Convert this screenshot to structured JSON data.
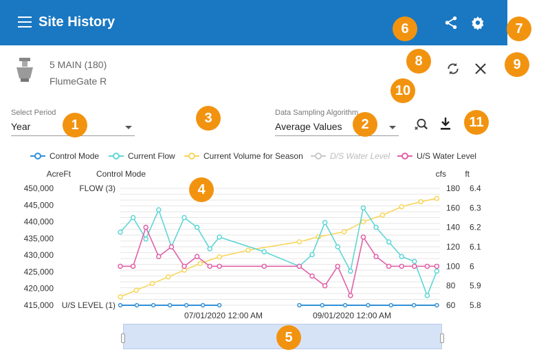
{
  "header": {
    "title": "Site History"
  },
  "asset": {
    "name": "5 MAIN (180)",
    "type": "FlumeGate R"
  },
  "period": {
    "label": "Select Period",
    "value": "Year"
  },
  "sampling": {
    "label": "Data Sampling Algorithm",
    "value": "Average Values"
  },
  "icons": [
    "menu-icon",
    "share-icon",
    "settings-icon",
    "refresh-icon",
    "close-icon",
    "zoom-reset-icon",
    "download-icon",
    "flumegate-icon"
  ],
  "colors": {
    "header_bg": "#1a78c2",
    "callout": "#f29310",
    "control_mode": "#2f8fd6",
    "current_flow": "#5fd5d5",
    "current_volume": "#f8d65a",
    "ds_water_level": "#c8c8c8",
    "us_water_level": "#e060a8"
  },
  "callouts": [
    "1",
    "2",
    "3",
    "4",
    "5",
    "6",
    "7",
    "8",
    "9",
    "10",
    "11"
  ],
  "legend": [
    {
      "label": "Control Mode"
    },
    {
      "label": "Current Flow"
    },
    {
      "label": "Current Volume for Season"
    },
    {
      "label": "D/S Water Level"
    },
    {
      "label": "U/S Water Level"
    }
  ],
  "chart_data": {
    "type": "line",
    "axes": {
      "acreft": {
        "label": "AcreFt",
        "ticks": [
          "450,000",
          "445,000",
          "440,000",
          "435,000",
          "430,000",
          "425,000",
          "420,000",
          "415,000"
        ],
        "range": [
          415000,
          450000
        ]
      },
      "control_mode": {
        "label": "Control Mode",
        "ticks": [
          "FLOW (3)",
          "U/S LEVEL (1)"
        ]
      },
      "cfs": {
        "label": "cfs",
        "ticks": [
          "180",
          "160",
          "140",
          "120",
          "100",
          "80",
          "60"
        ],
        "range": [
          60,
          180
        ]
      },
      "ft": {
        "label": "ft",
        "ticks": [
          "6.4",
          "6.3",
          "6.2",
          "6.1",
          "6",
          "5.9",
          "5.8"
        ],
        "range": [
          5.8,
          6.4
        ]
      },
      "x": {
        "ticks": [
          "07/01/2020 12:00 AM",
          "09/01/2020 12:00 AM"
        ]
      }
    },
    "series": [
      {
        "name": "Control Mode",
        "axis": "control_mode",
        "shape": "flat",
        "level": 60,
        "segments": [
          [
            0.0,
            0.31
          ],
          [
            0.56,
            0.99
          ]
        ]
      },
      {
        "name": "Current Flow",
        "axis": "cfs",
        "x": [
          0.0,
          0.04,
          0.08,
          0.12,
          0.16,
          0.2,
          0.24,
          0.28,
          0.31,
          0.45,
          0.56,
          0.6,
          0.64,
          0.68,
          0.72,
          0.76,
          0.8,
          0.84,
          0.88,
          0.92,
          0.96,
          0.99
        ],
        "y": [
          135,
          150,
          128,
          158,
          120,
          150,
          140,
          118,
          130,
          115,
          100,
          112,
          145,
          120,
          95,
          160,
          140,
          125,
          110,
          105,
          70,
          95
        ]
      },
      {
        "name": "Current Volume for Season",
        "axis": "acreft",
        "x": [
          0.0,
          0.05,
          0.1,
          0.15,
          0.2,
          0.25,
          0.31,
          0.4,
          0.56,
          0.62,
          0.7,
          0.76,
          0.82,
          0.88,
          0.94,
          0.99
        ],
        "y": [
          417500,
          419500,
          421500,
          423500,
          425500,
          427500,
          429500,
          431500,
          434000,
          435500,
          437000,
          440000,
          442000,
          444500,
          446000,
          447000
        ]
      },
      {
        "name": "U/S Water Level",
        "axis": "ft",
        "x": [
          0.0,
          0.04,
          0.08,
          0.12,
          0.16,
          0.2,
          0.24,
          0.28,
          0.31,
          0.45,
          0.56,
          0.6,
          0.64,
          0.68,
          0.72,
          0.76,
          0.8,
          0.84,
          0.88,
          0.92,
          0.96,
          0.99
        ],
        "y": [
          6.0,
          6.0,
          6.2,
          6.05,
          6.1,
          6.0,
          6.05,
          6.0,
          6.0,
          6.0,
          6.0,
          5.95,
          5.9,
          6.0,
          5.85,
          6.15,
          6.05,
          6.0,
          6.0,
          6.0,
          6.0,
          6.0
        ]
      }
    ]
  }
}
